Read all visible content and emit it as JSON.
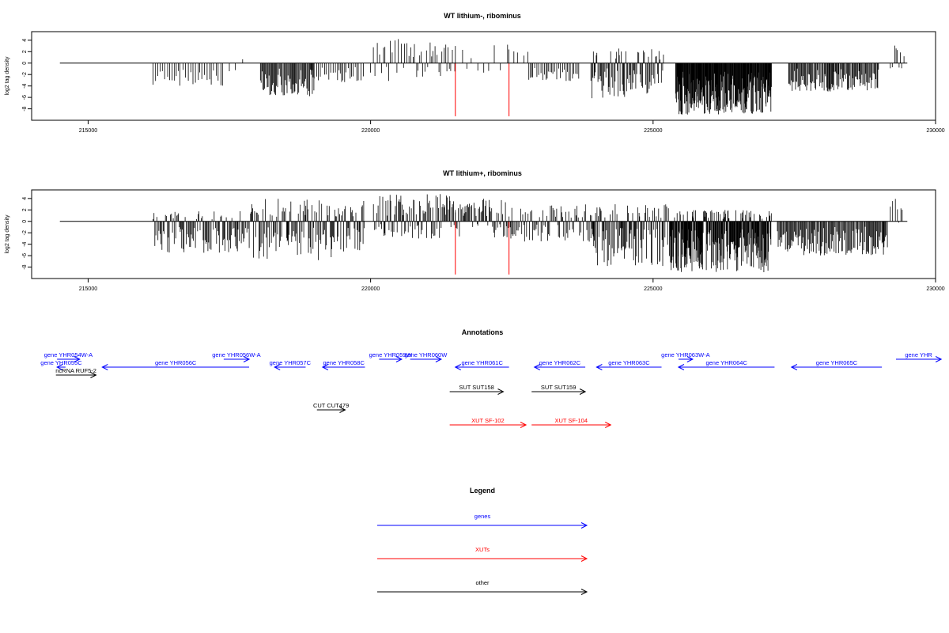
{
  "chart_data": [
    {
      "type": "bar",
      "title": "WT lithium-, ribominus",
      "xlabel": "",
      "ylabel": "log2 tag density",
      "xlim": [
        214000,
        230000
      ],
      "ylim": [
        -10,
        5.5
      ],
      "x_ticks": [
        215000,
        220000,
        225000,
        230000
      ],
      "y_ticks": [
        4,
        2,
        0,
        -2,
        -4,
        -6,
        -8
      ],
      "baseline": {
        "from": 214500,
        "to": 229500
      },
      "marker_lines": [
        {
          "x": 221500,
          "y_to": -9.3,
          "color": "#ff0000"
        },
        {
          "x": 222450,
          "y_to": -9.3,
          "color": "#ff0000"
        }
      ],
      "segments": [
        {
          "from": 216150,
          "to": 217400,
          "min": -4,
          "max": 0,
          "density": 0.35
        },
        {
          "from": 217500,
          "to": 217800,
          "min": -3.5,
          "max": 2.4,
          "density": 0.15
        },
        {
          "from": 218050,
          "to": 219000,
          "min": -5.8,
          "max": 0,
          "density": 0.9
        },
        {
          "from": 219000,
          "to": 219900,
          "min": -3.5,
          "max": 0,
          "density": 0.4
        },
        {
          "from": 220000,
          "to": 220600,
          "min": -3.6,
          "max": 4.2,
          "density": 0.35
        },
        {
          "from": 220600,
          "to": 221500,
          "min": -2.8,
          "max": 3.8,
          "density": 0.45
        },
        {
          "from": 221500,
          "to": 222450,
          "min": -2.5,
          "max": 3.3,
          "density": 0.15
        },
        {
          "from": 222450,
          "to": 222800,
          "min": 0,
          "max": 2.8,
          "density": 0.15
        },
        {
          "from": 222800,
          "to": 223700,
          "min": -3.2,
          "max": 0,
          "density": 0.45
        },
        {
          "from": 223900,
          "to": 225200,
          "min": -6.2,
          "max": 2.8,
          "density": 0.85
        },
        {
          "from": 225400,
          "to": 227100,
          "min": -9,
          "max": 0,
          "density": 1.8
        },
        {
          "from": 227400,
          "to": 229000,
          "min": -5,
          "max": 0,
          "density": 0.9
        },
        {
          "from": 229200,
          "to": 229450,
          "min": -1,
          "max": 3.6,
          "density": 0.4
        }
      ]
    },
    {
      "type": "bar",
      "title": "WT lithium+, ribominus",
      "xlabel": "",
      "ylabel": "log2 tag density",
      "xlim": [
        214000,
        230000
      ],
      "ylim": [
        -10,
        5.5
      ],
      "x_ticks": [
        215000,
        220000,
        225000,
        230000
      ],
      "y_ticks": [
        4,
        2,
        0,
        -2,
        -4,
        -6,
        -8
      ],
      "baseline": {
        "from": 214500,
        "to": 229500
      },
      "marker_lines": [
        {
          "x": 221500,
          "y_to": -9.3,
          "color": "#ff0000"
        },
        {
          "x": 222450,
          "y_to": -9.3,
          "color": "#ff0000"
        }
      ],
      "segments": [
        {
          "from": 216150,
          "to": 217900,
          "min": -5.5,
          "max": 1.8,
          "density": 0.8
        },
        {
          "from": 217900,
          "to": 219900,
          "min": -6.8,
          "max": 4,
          "density": 0.9
        },
        {
          "from": 220050,
          "to": 221500,
          "min": -3,
          "max": 4.8,
          "density": 0.9
        },
        {
          "from": 221500,
          "to": 222500,
          "min": -3,
          "max": 4.2,
          "density": 0.8
        },
        {
          "from": 222500,
          "to": 223900,
          "min": -3.8,
          "max": 3,
          "density": 0.7
        },
        {
          "from": 223900,
          "to": 225300,
          "min": -7.8,
          "max": 3,
          "density": 1.0
        },
        {
          "from": 225300,
          "to": 227100,
          "min": -8.9,
          "max": 2,
          "density": 1.9
        },
        {
          "from": 227200,
          "to": 229150,
          "min": -6,
          "max": 0,
          "density": 0.9
        },
        {
          "from": 229200,
          "to": 229450,
          "min": -1,
          "max": 4,
          "density": 0.4
        }
      ]
    }
  ],
  "annotations": {
    "title": "Annotations",
    "xlim": [
      214000,
      230000
    ],
    "items": [
      {
        "label": "gene YHR054W-A",
        "from": 214450,
        "to": 214850,
        "strand": "+",
        "row": 0,
        "color": "#0000ff"
      },
      {
        "label": "gene YHR055C",
        "from": 214450,
        "to": 214600,
        "strand": "-",
        "row": 1,
        "color": "#0000ff"
      },
      {
        "label": "ncRNA RUF5-2",
        "from": 214430,
        "to": 215140,
        "strand": "+",
        "row": 2,
        "color": "#000000"
      },
      {
        "label": "gene YHR056C",
        "from": 215250,
        "to": 217850,
        "strand": "-",
        "row": 1,
        "color": "#0000ff"
      },
      {
        "label": "gene YHR056W-A",
        "from": 217400,
        "to": 217850,
        "strand": "+",
        "row": 0,
        "color": "#0000ff"
      },
      {
        "label": "gene YHR057C",
        "from": 218300,
        "to": 218850,
        "strand": "-",
        "row": 1,
        "color": "#0000ff"
      },
      {
        "label": "gene YHR058C",
        "from": 219150,
        "to": 219900,
        "strand": "-",
        "row": 1,
        "color": "#0000ff"
      },
      {
        "label": "gene YHR059W",
        "from": 220150,
        "to": 220550,
        "strand": "+",
        "row": 0,
        "color": "#0000ff"
      },
      {
        "label": "gene YHR060W",
        "from": 220700,
        "to": 221250,
        "strand": "+",
        "row": 0,
        "color": "#0000ff"
      },
      {
        "label": "gene YHR061C",
        "from": 221500,
        "to": 222450,
        "strand": "-",
        "row": 1,
        "color": "#0000ff"
      },
      {
        "label": "gene YHR062C",
        "from": 222900,
        "to": 223800,
        "strand": "-",
        "row": 1,
        "color": "#0000ff"
      },
      {
        "label": "gene YHR063C",
        "from": 224000,
        "to": 225150,
        "strand": "-",
        "row": 1,
        "color": "#0000ff"
      },
      {
        "label": "gene YHR063W-A",
        "from": 225450,
        "to": 225700,
        "strand": "+",
        "row": 0,
        "color": "#0000ff"
      },
      {
        "label": "gene YHR064C",
        "from": 225450,
        "to": 227150,
        "strand": "-",
        "row": 1,
        "color": "#0000ff"
      },
      {
        "label": "gene YHR065C",
        "from": 227450,
        "to": 229050,
        "strand": "-",
        "row": 1,
        "color": "#0000ff"
      },
      {
        "label": "gene YHR",
        "from": 229300,
        "to": 230100,
        "strand": "+",
        "row": 0,
        "color": "#0000ff"
      },
      {
        "label": "SUT SUT158",
        "from": 221400,
        "to": 222350,
        "strand": "+",
        "row": 3,
        "color": "#000000"
      },
      {
        "label": "SUT SUT159",
        "from": 222850,
        "to": 223800,
        "strand": "+",
        "row": 3,
        "color": "#000000"
      },
      {
        "label": "CUT CUT479",
        "from": 219050,
        "to": 219550,
        "strand": "+",
        "row": 4,
        "color": "#000000"
      },
      {
        "label": "XUT SF-102",
        "from": 221400,
        "to": 222750,
        "strand": "+",
        "row": 5,
        "color": "#ff0000"
      },
      {
        "label": "XUT SF-104",
        "from": 222850,
        "to": 224250,
        "strand": "+",
        "row": 5,
        "color": "#ff0000"
      }
    ]
  },
  "legend": {
    "title": "Legend",
    "items": [
      {
        "label": "genes",
        "color": "#0000ff"
      },
      {
        "label": "XUTs",
        "color": "#ff0000"
      },
      {
        "label": "other",
        "color": "#000000"
      }
    ]
  }
}
